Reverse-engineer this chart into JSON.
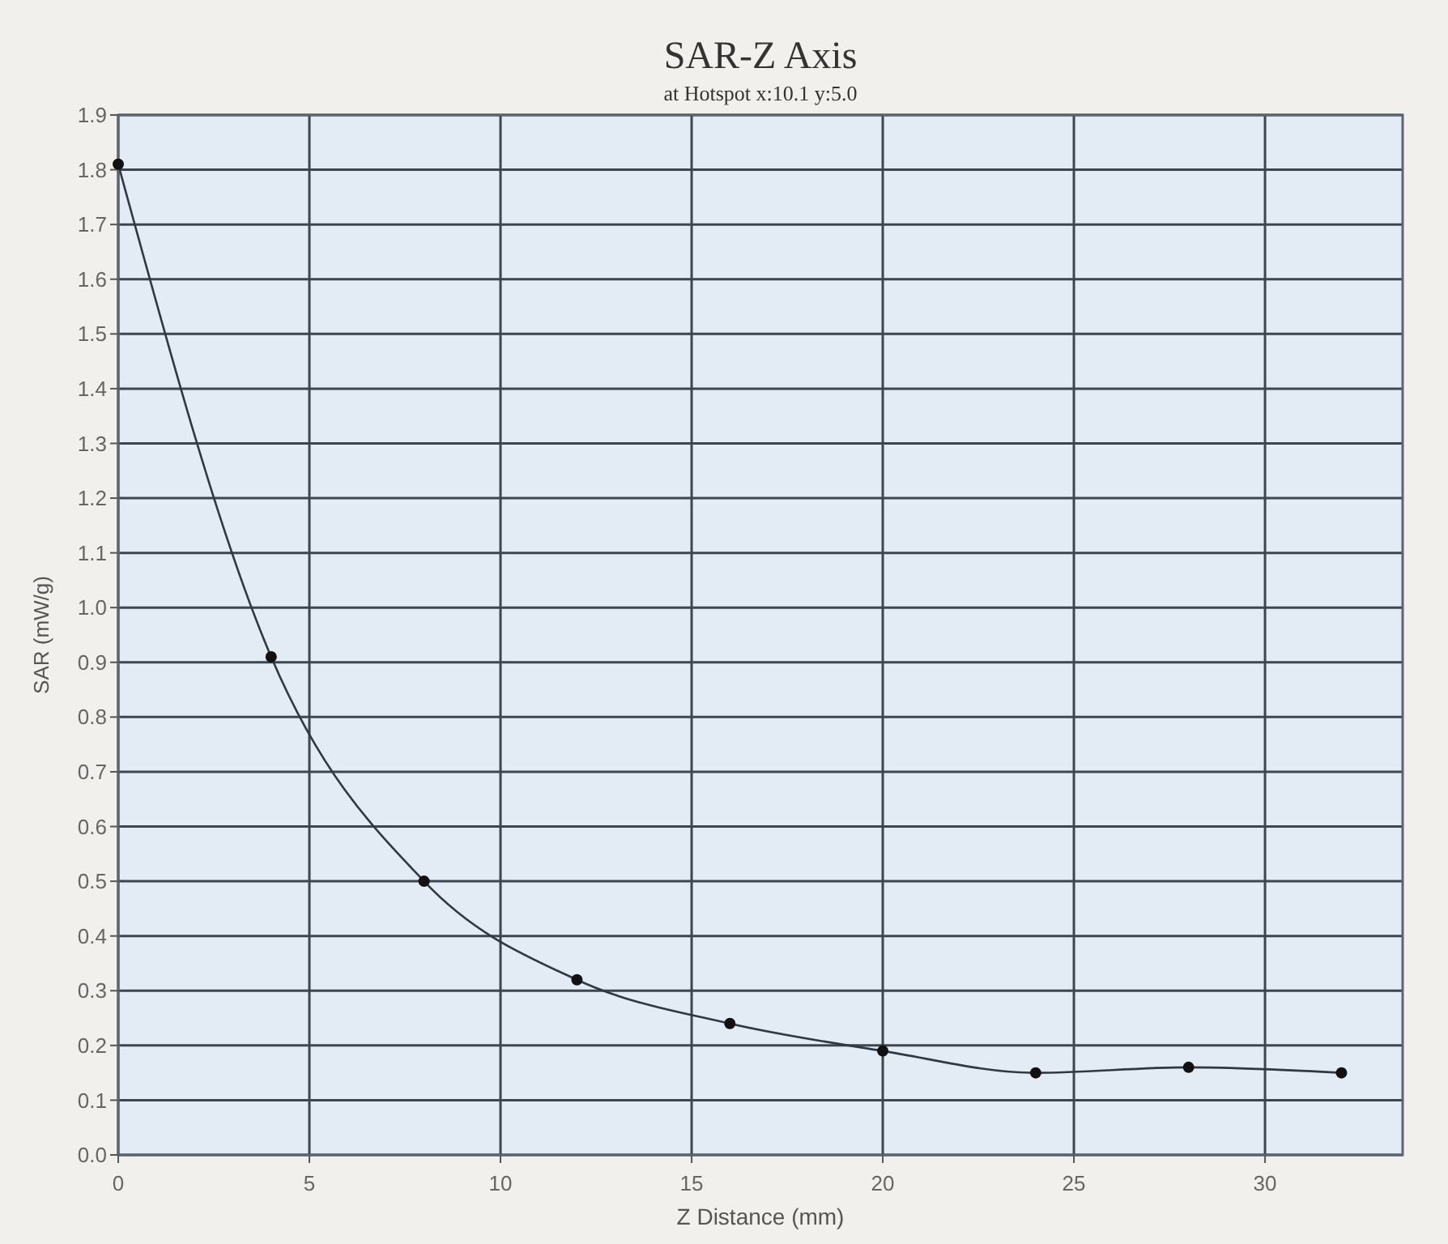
{
  "chart_data": {
    "type": "line",
    "title": "SAR-Z Axis",
    "subtitle": "at Hotspot x:10.1 y:5.0",
    "xlabel": "Z Distance (mm)",
    "ylabel": "SAR (mW/g)",
    "x": [
      0,
      4,
      8,
      12,
      16,
      20,
      24,
      28,
      32
    ],
    "series": [
      {
        "color": "#303840",
        "values": [
          1.81,
          0.91,
          0.5,
          0.32,
          0.24,
          0.19,
          0.15,
          0.16,
          0.15
        ]
      }
    ],
    "xlim": [
      0,
      33.6
    ],
    "xticks": [
      0,
      5,
      10,
      15,
      20,
      25,
      30
    ],
    "ylim": [
      0,
      1.9
    ],
    "yticks": [
      {
        "value": 0,
        "label": "0.0"
      },
      {
        "value": 0.1,
        "label": "0.1"
      },
      {
        "value": 0.2,
        "label": "0.2"
      },
      {
        "value": 0.3,
        "label": "0.3"
      },
      {
        "value": 0.4,
        "label": "0.4"
      },
      {
        "value": 0.5,
        "label": "0.5"
      },
      {
        "value": 0.6,
        "label": "0.6"
      },
      {
        "value": 0.7,
        "label": "0.7"
      },
      {
        "value": 0.8,
        "label": "0.8"
      },
      {
        "value": 0.9,
        "label": "0.9"
      },
      {
        "value": 1,
        "label": "1.0"
      },
      {
        "value": 1.1,
        "label": "1.1"
      },
      {
        "value": 1.2,
        "label": "1.2"
      },
      {
        "value": 1.3,
        "label": "1.3"
      },
      {
        "value": 1.4,
        "label": "1.4"
      },
      {
        "value": 1.5,
        "label": "1.5"
      },
      {
        "value": 1.6,
        "label": "1.6"
      },
      {
        "value": 1.7,
        "label": "1.7"
      },
      {
        "value": 1.8,
        "label": "1.8"
      },
      {
        "value": 1.9,
        "label": "1.9"
      }
    ],
    "grid": true,
    "marker": "circle",
    "line_style": "solid"
  }
}
